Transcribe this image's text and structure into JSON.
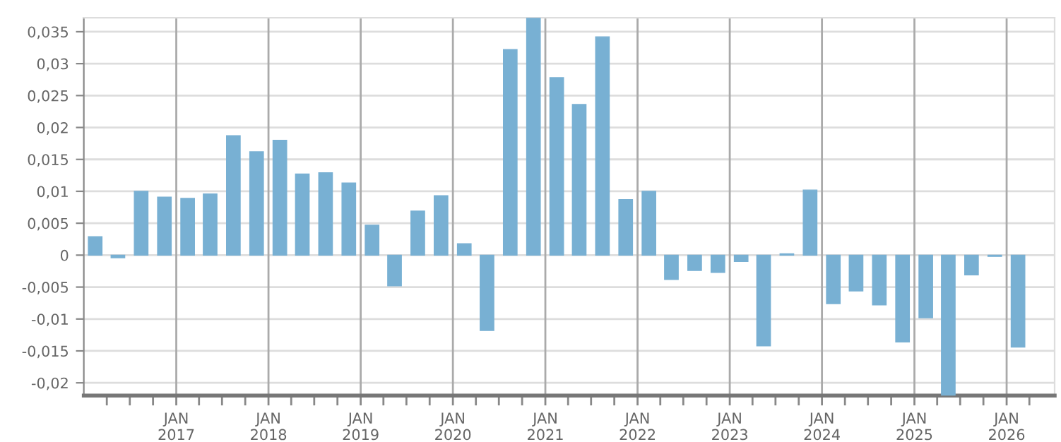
{
  "chart_data": {
    "type": "bar",
    "color": "#78b0d3",
    "x": [
      "2016-02-15",
      "2016-05-15",
      "2016-08-15",
      "2016-11-15",
      "2017-02-15",
      "2017-05-15",
      "2017-08-15",
      "2017-11-15",
      "2018-02-15",
      "2018-05-15",
      "2018-08-15",
      "2018-11-15",
      "2019-02-15",
      "2019-05-15",
      "2019-08-15",
      "2019-11-15",
      "2020-02-15",
      "2020-05-15",
      "2020-08-15",
      "2020-11-15",
      "2021-02-15",
      "2021-05-15",
      "2021-08-15",
      "2021-11-15",
      "2022-02-15",
      "2022-05-15",
      "2022-08-15",
      "2022-11-15",
      "2023-02-15",
      "2023-05-15",
      "2023-08-15",
      "2023-11-15",
      "2024-02-15",
      "2024-05-15",
      "2024-08-15",
      "2024-11-15",
      "2025-02-15",
      "2025-05-15",
      "2025-08-15",
      "2025-11-15",
      "2026-02-15"
    ],
    "values": [
      0.0029,
      -0.0004,
      0.01,
      0.0091,
      0.0089,
      0.0096,
      0.0187,
      0.0162,
      0.018,
      0.0127,
      0.0129,
      0.0113,
      0.0047,
      -0.0048,
      0.0069,
      0.0093,
      0.0018,
      -0.0118,
      0.0322,
      0.0371,
      0.0278,
      0.0236,
      0.0342,
      0.0087,
      0.01,
      -0.0038,
      -0.0024,
      -0.0027,
      -0.001,
      -0.0142,
      0.0002,
      0.0102,
      -0.0076,
      -0.0056,
      -0.0078,
      -0.0136,
      -0.0098,
      -0.022,
      -0.0031,
      -0.0002,
      -0.0144
    ],
    "xlim": [
      "2016-01-01",
      "2026-07-10"
    ],
    "xticks": [
      {
        "value": "2016-04-01",
        "label": null
      },
      {
        "value": "2016-07-01",
        "label": null
      },
      {
        "value": "2016-10-01",
        "label": null
      },
      {
        "value": "2017-01-01",
        "label": "JAN\n2017"
      },
      {
        "value": "2017-04-01",
        "label": null
      },
      {
        "value": "2017-07-01",
        "label": null
      },
      {
        "value": "2017-10-01",
        "label": null
      },
      {
        "value": "2018-01-01",
        "label": "JAN\n2018"
      },
      {
        "value": "2018-04-01",
        "label": null
      },
      {
        "value": "2018-07-01",
        "label": null
      },
      {
        "value": "2018-10-01",
        "label": null
      },
      {
        "value": "2019-01-01",
        "label": "JAN\n2019"
      },
      {
        "value": "2019-04-01",
        "label": null
      },
      {
        "value": "2019-07-01",
        "label": null
      },
      {
        "value": "2019-10-01",
        "label": null
      },
      {
        "value": "2020-01-01",
        "label": "JAN\n2020"
      },
      {
        "value": "2020-04-01",
        "label": null
      },
      {
        "value": "2020-07-01",
        "label": null
      },
      {
        "value": "2020-10-01",
        "label": null
      },
      {
        "value": "2021-01-01",
        "label": "JAN\n2021"
      },
      {
        "value": "2021-04-01",
        "label": null
      },
      {
        "value": "2021-07-01",
        "label": null
      },
      {
        "value": "2021-10-01",
        "label": null
      },
      {
        "value": "2022-01-01",
        "label": "JAN\n2022"
      },
      {
        "value": "2022-04-01",
        "label": null
      },
      {
        "value": "2022-07-01",
        "label": null
      },
      {
        "value": "2022-10-01",
        "label": null
      },
      {
        "value": "2023-01-01",
        "label": "JAN\n2023"
      },
      {
        "value": "2023-04-01",
        "label": null
      },
      {
        "value": "2023-07-01",
        "label": null
      },
      {
        "value": "2023-10-01",
        "label": null
      },
      {
        "value": "2024-01-01",
        "label": "JAN\n2024"
      },
      {
        "value": "2024-04-01",
        "label": null
      },
      {
        "value": "2024-07-01",
        "label": null
      },
      {
        "value": "2024-10-01",
        "label": null
      },
      {
        "value": "2025-01-01",
        "label": "JAN\n2025"
      },
      {
        "value": "2025-04-01",
        "label": null
      },
      {
        "value": "2025-07-01",
        "label": null
      },
      {
        "value": "2025-10-01",
        "label": null
      },
      {
        "value": "2026-01-01",
        "label": "JAN\n2026"
      },
      {
        "value": "2026-04-01",
        "label": null
      }
    ],
    "ylim": [
      -0.022,
      0.0372
    ],
    "yticks": [
      {
        "value": -0.02,
        "label": "-0,02"
      },
      {
        "value": -0.015,
        "label": "-0,015"
      },
      {
        "value": -0.01,
        "label": "-0,01"
      },
      {
        "value": -0.005,
        "label": "-0,005"
      },
      0,
      {
        "value": 0.005,
        "label": "0,005"
      },
      {
        "value": 0.01,
        "label": "0,01"
      },
      {
        "value": 0.015,
        "label": "0,015"
      },
      {
        "value": 0.02,
        "label": "0,02"
      },
      {
        "value": 0.025,
        "label": "0,025"
      },
      {
        "value": 0.03,
        "label": "0,03"
      },
      {
        "value": 0.035,
        "label": "0,035"
      }
    ],
    "grid": true
  }
}
